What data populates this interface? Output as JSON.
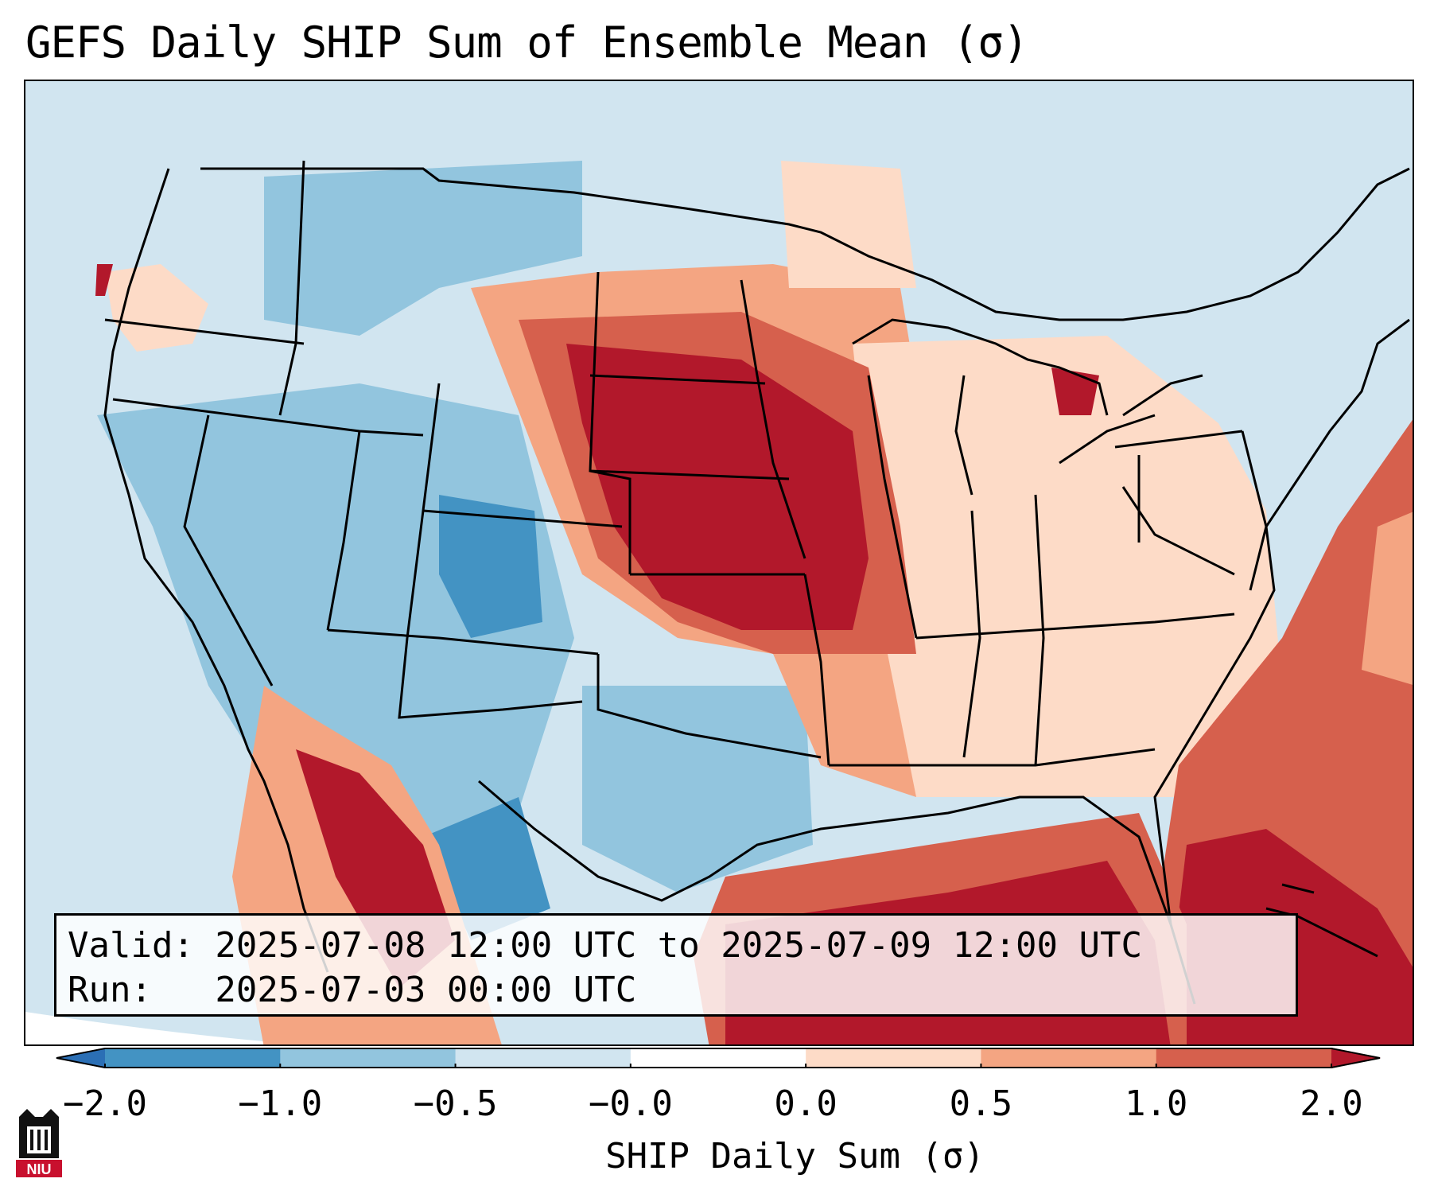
{
  "title": "GEFS Daily SHIP Sum of Ensemble Mean (σ)",
  "info": {
    "valid_line": "Valid: 2025-07-08 12:00 UTC to 2025-07-09 12:00 UTC",
    "run_line": "Run:   2025-07-03 00:00 UTC"
  },
  "colorbar": {
    "title": "SHIP Daily Sum (σ)",
    "tick_labels": [
      "−2.0",
      "−1.0",
      "−0.5",
      "−0.0",
      "0.0",
      "0.5",
      "1.0",
      "2.0"
    ],
    "colors": [
      "#2b6fb5",
      "#4393c3",
      "#92c5de",
      "#d1e5f0",
      "#ffffff",
      "#fddbc7",
      "#f4a582",
      "#d6604d",
      "#b2182b"
    ],
    "extend": "both"
  },
  "map": {
    "region": "Contiguous United States",
    "field_colors": {
      "ocean_west": "#d1e5f0",
      "ocean_east": "#d6604d",
      "gulf": "#b2182b",
      "canada": "#d1e5f0"
    }
  },
  "logo": {
    "text": "NIU",
    "color": "#c8102e"
  }
}
